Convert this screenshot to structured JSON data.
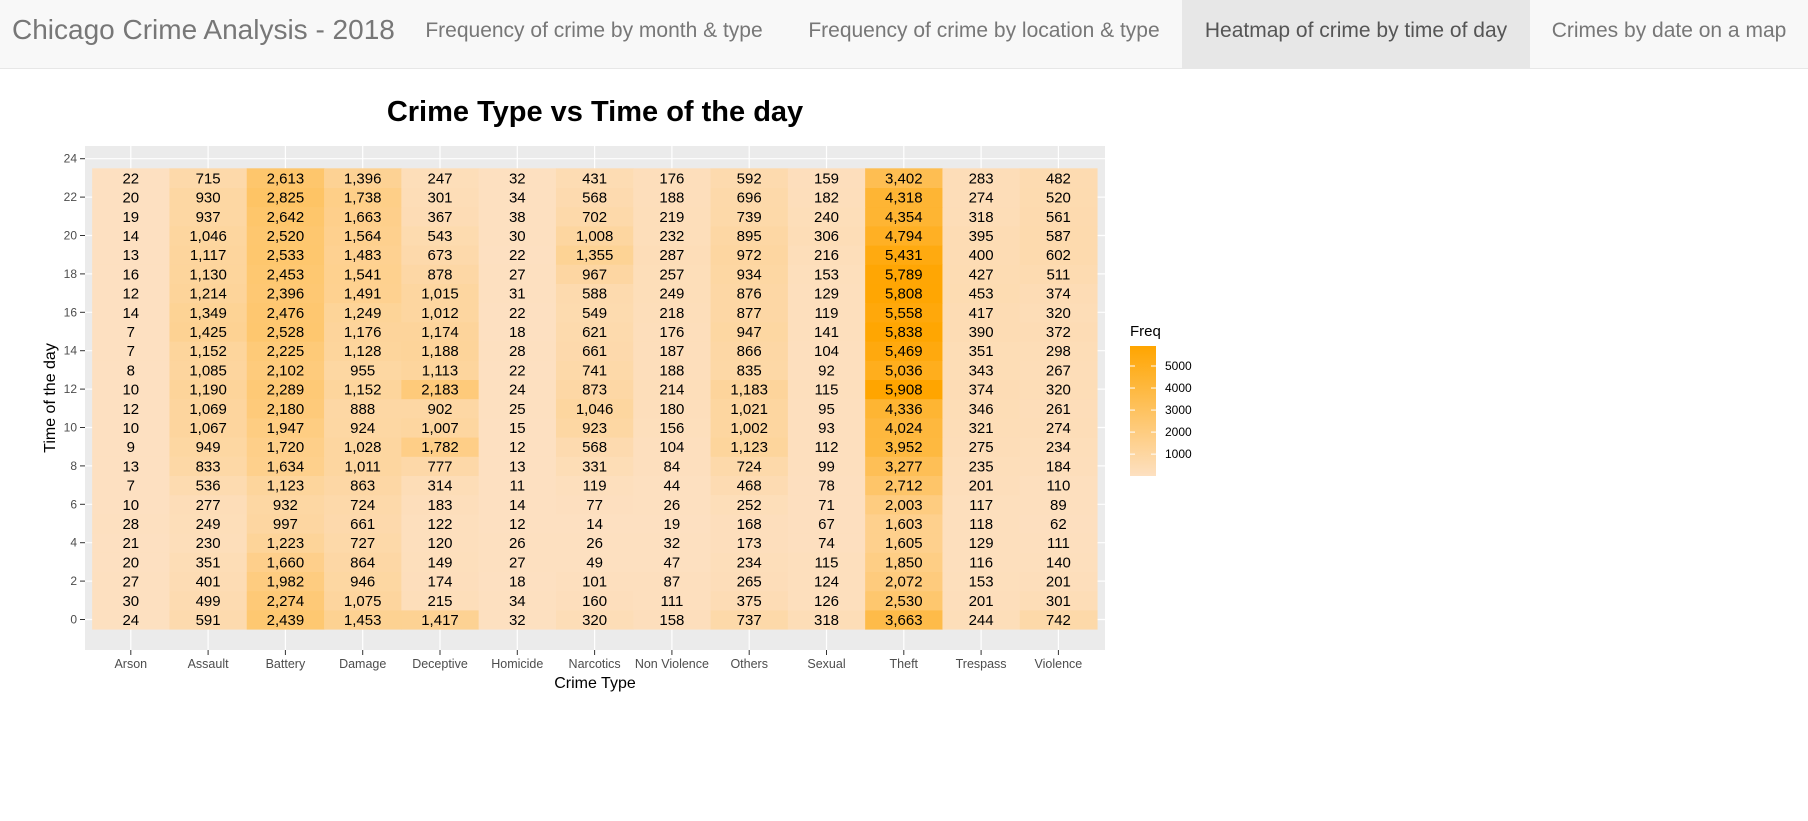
{
  "navbar": {
    "brand": "Chicago Crime Analysis - 2018",
    "tabs": [
      {
        "label": "Frequency of crime by month & type",
        "active": false
      },
      {
        "label": "Frequency of crime by location & type",
        "active": false
      },
      {
        "label": "Heatmap of crime by time of day",
        "active": true
      },
      {
        "label": "Crimes by date on a map",
        "active": false
      }
    ]
  },
  "colors": {
    "low": "#fde0c1",
    "high": "#ffa500",
    "panel": "#ebebeb",
    "grid": "#ffffff"
  },
  "chart_data": {
    "type": "heatmap",
    "title": "Crime Type vs Time of the day",
    "xlabel": "Crime Type",
    "ylabel": "Time of the day",
    "categories": [
      "Arson",
      "Assault",
      "Battery",
      "Damage",
      "Deceptive",
      "Homicide",
      "Narcotics",
      "Non Violence",
      "Others",
      "Sexual",
      "Theft",
      "Trespass",
      "Violence"
    ],
    "hours": [
      0,
      1,
      2,
      3,
      4,
      5,
      6,
      7,
      8,
      9,
      10,
      11,
      12,
      13,
      14,
      15,
      16,
      17,
      18,
      19,
      20,
      21,
      22,
      23
    ],
    "yticks": [
      0,
      2,
      4,
      6,
      8,
      10,
      12,
      14,
      16,
      18,
      20,
      22,
      24
    ],
    "ylim": [
      -1,
      24
    ],
    "values": [
      [
        24,
        591,
        2439,
        1453,
        1417,
        32,
        320,
        158,
        737,
        318,
        3663,
        244,
        742
      ],
      [
        30,
        499,
        2274,
        1075,
        215,
        34,
        160,
        111,
        375,
        126,
        2530,
        201,
        301
      ],
      [
        27,
        401,
        1982,
        946,
        174,
        18,
        101,
        87,
        265,
        124,
        2072,
        153,
        201
      ],
      [
        20,
        351,
        1660,
        864,
        149,
        27,
        49,
        47,
        234,
        115,
        1850,
        116,
        140
      ],
      [
        21,
        230,
        1223,
        727,
        120,
        26,
        26,
        32,
        173,
        74,
        1605,
        129,
        111
      ],
      [
        28,
        249,
        997,
        661,
        122,
        12,
        14,
        19,
        168,
        67,
        1603,
        118,
        62
      ],
      [
        10,
        277,
        932,
        724,
        183,
        14,
        77,
        26,
        252,
        71,
        2003,
        117,
        89
      ],
      [
        7,
        536,
        1123,
        863,
        314,
        11,
        119,
        44,
        468,
        78,
        2712,
        201,
        110
      ],
      [
        13,
        833,
        1634,
        1011,
        777,
        13,
        331,
        84,
        724,
        99,
        3277,
        235,
        184
      ],
      [
        9,
        949,
        1720,
        1028,
        1782,
        12,
        568,
        104,
        1123,
        112,
        3952,
        275,
        234
      ],
      [
        10,
        1067,
        1947,
        924,
        1007,
        15,
        923,
        156,
        1002,
        93,
        4024,
        321,
        274
      ],
      [
        12,
        1069,
        2180,
        888,
        902,
        25,
        1046,
        180,
        1021,
        95,
        4336,
        346,
        261
      ],
      [
        10,
        1190,
        2289,
        1152,
        2183,
        24,
        873,
        214,
        1183,
        115,
        5908,
        374,
        320
      ],
      [
        8,
        1085,
        2102,
        955,
        1113,
        22,
        741,
        188,
        835,
        92,
        5036,
        343,
        267
      ],
      [
        7,
        1152,
        2225,
        1128,
        1188,
        28,
        661,
        187,
        866,
        104,
        5469,
        351,
        298
      ],
      [
        7,
        1425,
        2528,
        1176,
        1174,
        18,
        621,
        176,
        947,
        141,
        5838,
        390,
        372
      ],
      [
        14,
        1349,
        2476,
        1249,
        1012,
        22,
        549,
        218,
        877,
        119,
        5558,
        417,
        320
      ],
      [
        12,
        1214,
        2396,
        1491,
        1015,
        31,
        588,
        249,
        876,
        129,
        5808,
        453,
        374
      ],
      [
        16,
        1130,
        2453,
        1541,
        878,
        27,
        967,
        257,
        934,
        153,
        5789,
        427,
        511
      ],
      [
        13,
        1117,
        2533,
        1483,
        673,
        22,
        1355,
        287,
        972,
        216,
        5431,
        400,
        602
      ],
      [
        14,
        1046,
        2520,
        1564,
        543,
        30,
        1008,
        232,
        895,
        306,
        4794,
        395,
        587
      ],
      [
        19,
        937,
        2642,
        1663,
        367,
        38,
        702,
        219,
        739,
        240,
        4354,
        318,
        561
      ],
      [
        20,
        930,
        2825,
        1738,
        301,
        34,
        568,
        188,
        696,
        182,
        4318,
        274,
        520
      ],
      [
        22,
        715,
        2613,
        1396,
        247,
        32,
        431,
        176,
        592,
        159,
        3402,
        283,
        482
      ]
    ],
    "legend": {
      "title": "Freq",
      "ticks": [
        1000,
        2000,
        3000,
        4000,
        5000
      ],
      "range": [
        7,
        5908
      ],
      "position": "right"
    },
    "grid": true
  }
}
